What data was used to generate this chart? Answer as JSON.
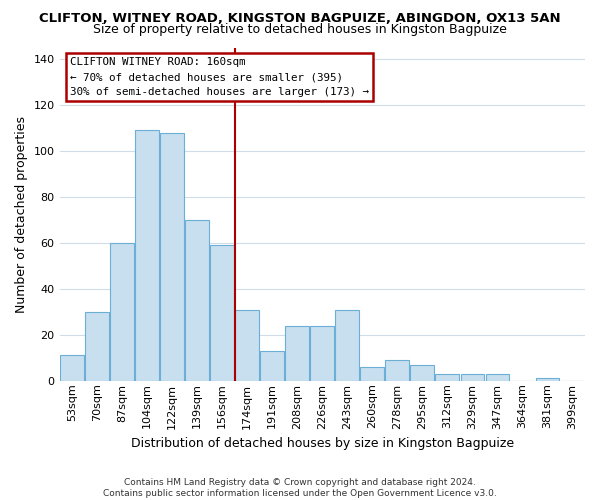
{
  "title": "CLIFTON, WITNEY ROAD, KINGSTON BAGPUIZE, ABINGDON, OX13 5AN",
  "subtitle": "Size of property relative to detached houses in Kingston Bagpuize",
  "xlabel": "Distribution of detached houses by size in Kingston Bagpuize",
  "ylabel": "Number of detached properties",
  "footer1": "Contains HM Land Registry data © Crown copyright and database right 2024.",
  "footer2": "Contains public sector information licensed under the Open Government Licence v3.0.",
  "bar_labels": [
    "53sqm",
    "70sqm",
    "87sqm",
    "104sqm",
    "122sqm",
    "139sqm",
    "156sqm",
    "174sqm",
    "191sqm",
    "208sqm",
    "226sqm",
    "243sqm",
    "260sqm",
    "278sqm",
    "295sqm",
    "312sqm",
    "329sqm",
    "347sqm",
    "364sqm",
    "381sqm",
    "399sqm"
  ],
  "bar_values": [
    11,
    30,
    60,
    109,
    108,
    70,
    59,
    31,
    13,
    24,
    24,
    31,
    6,
    9,
    7,
    3,
    3,
    3,
    0,
    1,
    0
  ],
  "bar_color": "#c8dff0",
  "bar_edge_color": "#6baed6",
  "vline_color": "#aa0000",
  "annotation_title": "CLIFTON WITNEY ROAD: 160sqm",
  "annotation_line1": "← 70% of detached houses are smaller (395)",
  "annotation_line2": "30% of semi-detached houses are larger (173) →",
  "annotation_box_facecolor": "#ffffff",
  "annotation_box_edgecolor": "#aa0000",
  "ylim": [
    0,
    145
  ],
  "yticks": [
    0,
    20,
    40,
    60,
    80,
    100,
    120,
    140
  ],
  "background_color": "#ffffff",
  "grid_color": "#d0dce8",
  "title_fontsize": 9.5,
  "subtitle_fontsize": 9,
  "tick_fontsize": 8,
  "ylabel_fontsize": 9,
  "xlabel_fontsize": 9,
  "footer_fontsize": 6.5
}
